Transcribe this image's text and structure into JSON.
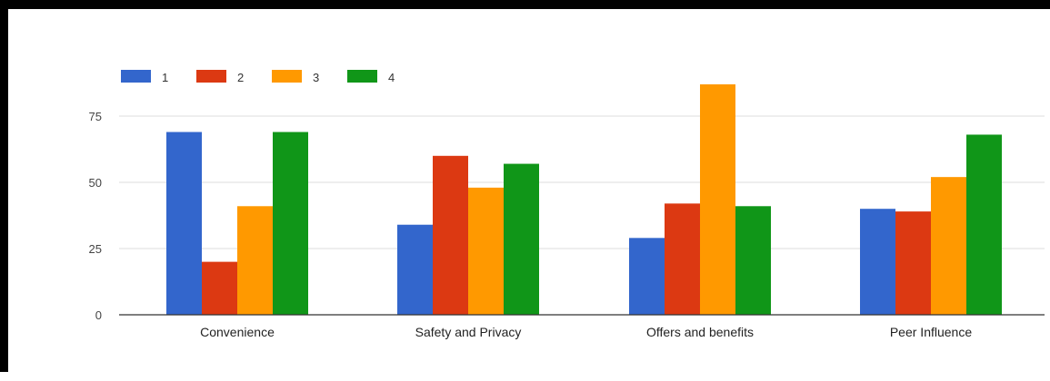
{
  "chart_data": {
    "type": "bar",
    "categories": [
      "Convenience",
      "Safety and Privacy",
      "Offers and benefits",
      "Peer Influence"
    ],
    "series": [
      {
        "name": "1",
        "color": "#3366cc",
        "values": [
          69,
          34,
          29,
          40
        ]
      },
      {
        "name": "2",
        "color": "#dc3912",
        "values": [
          20,
          60,
          42,
          39
        ]
      },
      {
        "name": "3",
        "color": "#ff9900",
        "values": [
          41,
          48,
          87,
          52
        ]
      },
      {
        "name": "4",
        "color": "#109618",
        "values": [
          69,
          57,
          41,
          68
        ]
      }
    ],
    "y_ticks": [
      0,
      25,
      50,
      75
    ],
    "ylim": [
      0,
      87.5
    ],
    "legend_position": "top-left",
    "grid": true
  }
}
